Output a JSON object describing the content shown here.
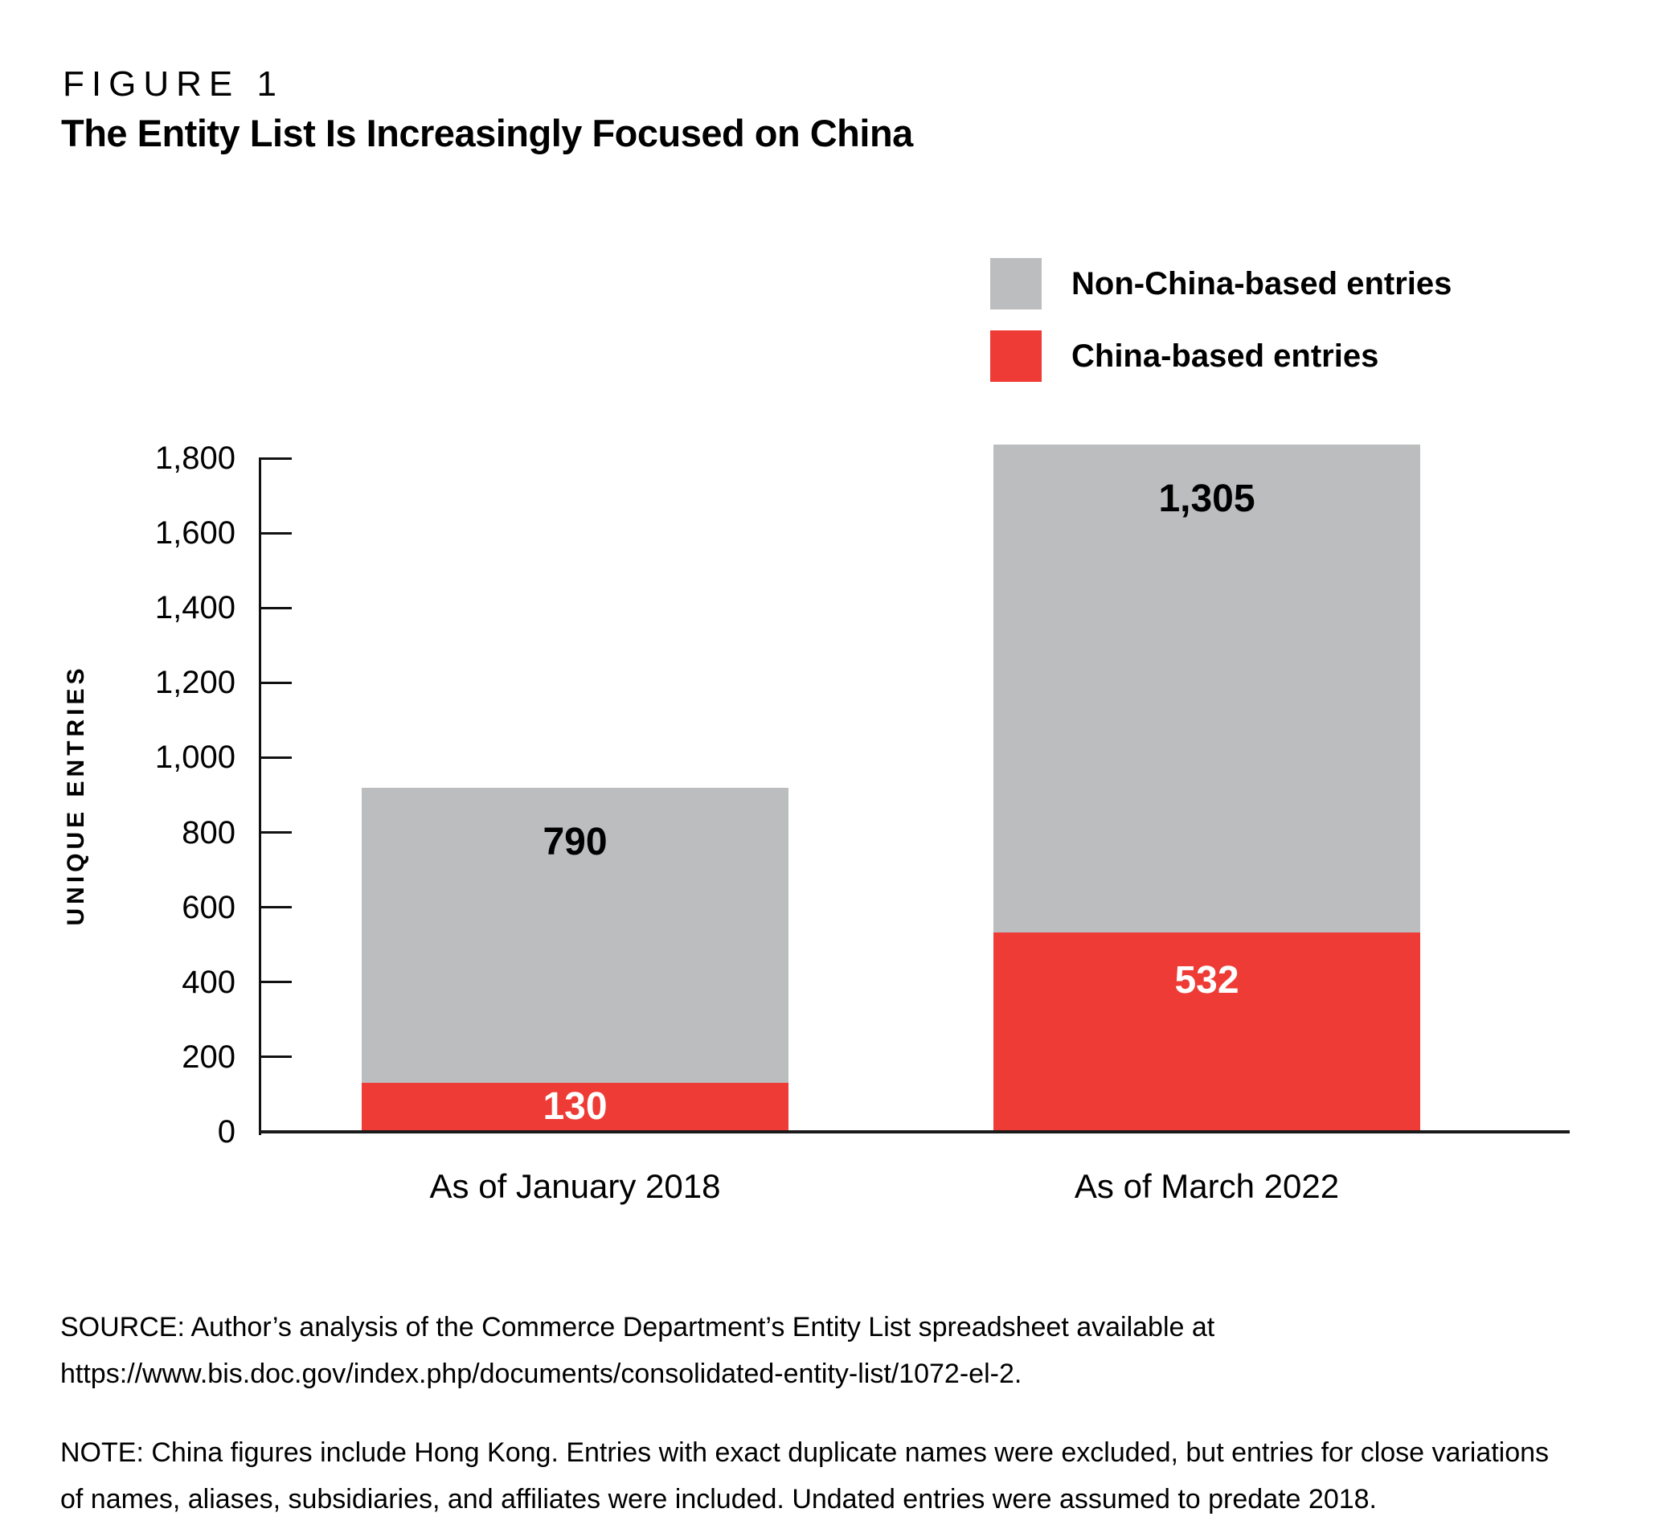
{
  "figure": {
    "label": "FIGURE 1",
    "title": "The Entity List Is Increasingly Focused on China"
  },
  "chart_data": {
    "type": "bar",
    "stacked": true,
    "categories": [
      "As of January 2018",
      "As of March 2022"
    ],
    "series": [
      {
        "name": "China-based entries",
        "color": "#EE3B36",
        "values": [
          130,
          532
        ],
        "labels": [
          "130",
          "532"
        ],
        "label_color": "#FFFFFF"
      },
      {
        "name": "Non-China-based entries",
        "color": "#BCBDBF",
        "values": [
          790,
          1305
        ],
        "labels": [
          "790",
          "1,305"
        ],
        "label_color": "#000000"
      }
    ],
    "ylabel": "UNIQUE ENTRIES",
    "ylim": [
      0,
      1800
    ],
    "ytick_step": 200,
    "yticks": [
      "0",
      "200",
      "400",
      "600",
      "800",
      "1,000",
      "1,200",
      "1,400",
      "1,600",
      "1,800"
    ],
    "grid": false,
    "legend_position": "top-right"
  },
  "source": {
    "lines": [
      "SOURCE: Author’s analysis of the Commerce Department’s Entity List spreadsheet available at",
      "https://www.bis.doc.gov/index.php/documents/consolidated-entity-list/1072-el-2."
    ]
  },
  "note": {
    "lines": [
      "NOTE: China figures include Hong Kong. Entries with exact duplicate names were excluded, but entries for close variations",
      "of names, aliases, subsidiaries, and affiliates were included. Undated entries were assumed to predate 2018."
    ]
  }
}
